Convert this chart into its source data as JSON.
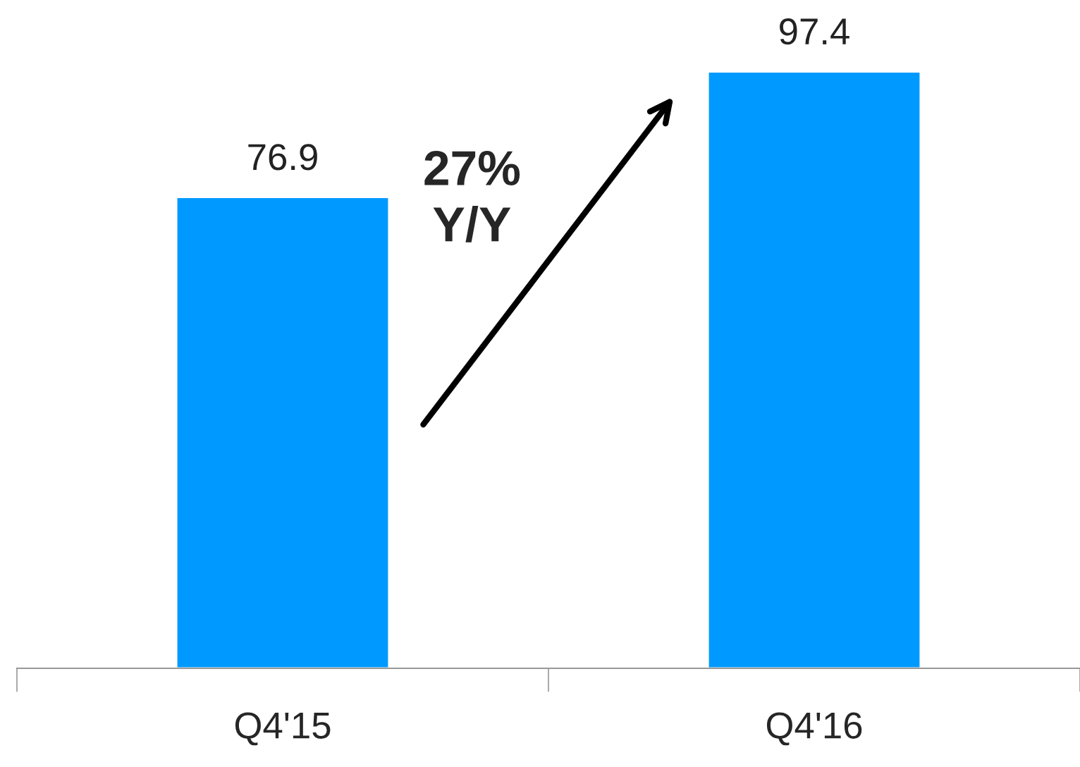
{
  "chart_data": {
    "type": "bar",
    "categories": [
      "Q4'15",
      "Q4'16"
    ],
    "values": [
      76.9,
      97.4
    ],
    "color": "#0099ff",
    "data_labels": true,
    "tick_labels": "x",
    "grid": false,
    "legend": false,
    "annotations": [
      "27%\nY/Y"
    ]
  }
}
